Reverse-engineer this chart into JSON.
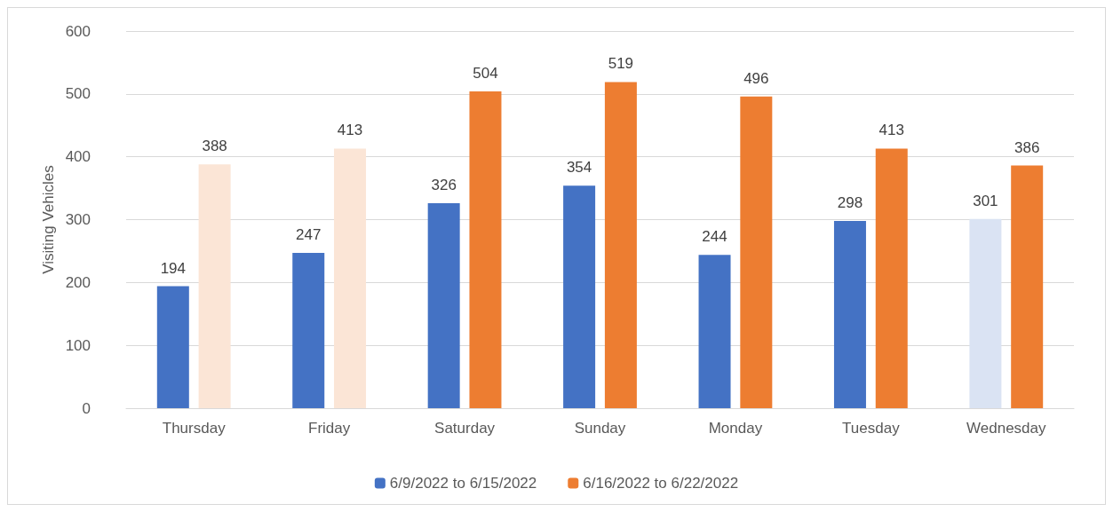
{
  "chart_data": {
    "type": "bar",
    "ylabel": "Visiting Vehicles",
    "categories": [
      "Thursday",
      "Friday",
      "Saturday",
      "Sunday",
      "Monday",
      "Tuesday",
      "Wednesday"
    ],
    "series": [
      {
        "name": "6/9/2022 to 6/15/2022",
        "color": "#4472c4",
        "colors": [
          "#4472c4",
          "#4472c4",
          "#4472c4",
          "#4472c4",
          "#4472c4",
          "#4472c4",
          "#dae3f3"
        ],
        "values": [
          194,
          247,
          326,
          354,
          244,
          298,
          301
        ]
      },
      {
        "name": "6/16/2022 to 6/22/2022",
        "color": "#ed7d31",
        "colors": [
          "#fbe5d6",
          "#fbe5d6",
          "#ed7d31",
          "#ed7d31",
          "#ed7d31",
          "#ed7d31",
          "#ed7d31"
        ],
        "values": [
          388,
          413,
          504,
          519,
          496,
          413,
          386
        ]
      }
    ],
    "ylim": [
      0,
      600
    ],
    "yticks": [
      0,
      100,
      200,
      300,
      400,
      500,
      600
    ],
    "grid": true,
    "legend": "bottom",
    "data_labels": true
  }
}
